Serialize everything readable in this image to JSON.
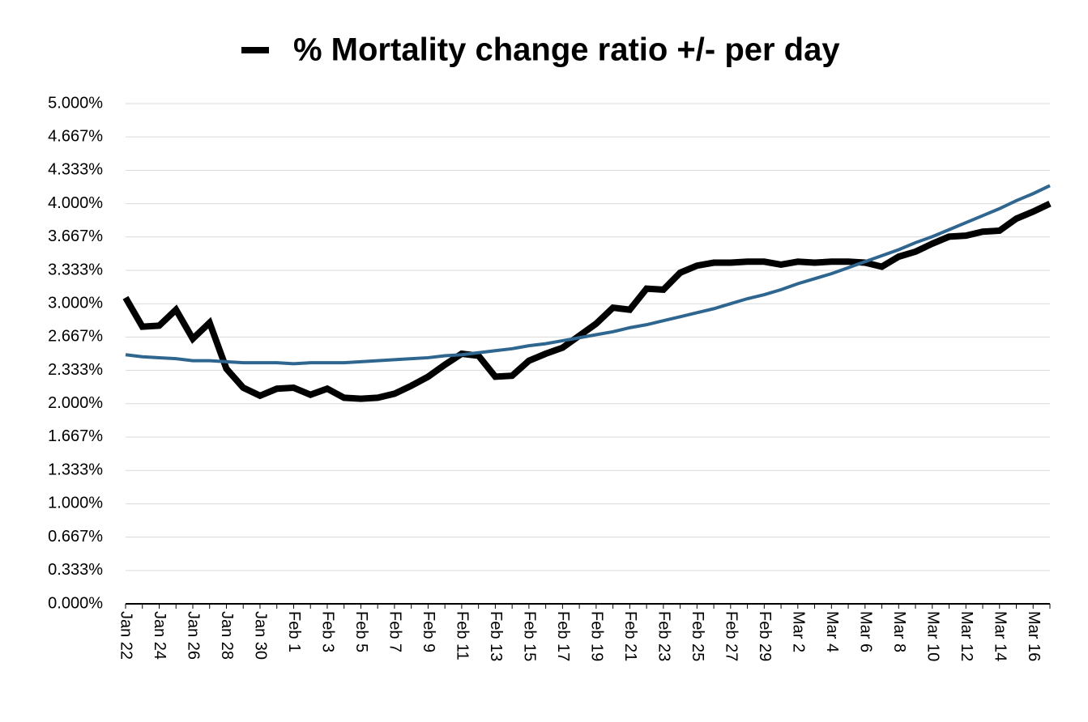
{
  "chart_data": {
    "type": "line",
    "categories": [
      "Jan 22",
      null,
      "Jan 24",
      null,
      "Jan 26",
      null,
      "Jan 28",
      null,
      "Jan 30",
      null,
      "Feb 1",
      null,
      "Feb 3",
      null,
      "Feb 5",
      null,
      "Feb 7",
      null,
      "Feb 9",
      null,
      "Feb 11",
      null,
      "Feb 13",
      null,
      "Feb 15",
      null,
      "Feb 17",
      null,
      "Feb 19",
      null,
      "Feb 21",
      null,
      "Feb 23",
      null,
      "Feb 25",
      null,
      "Feb 27",
      null,
      "Feb 29",
      null,
      "Mar 2",
      null,
      "Mar 4",
      null,
      "Mar 6",
      null,
      "Mar 8",
      null,
      "Mar 10",
      null,
      "Mar 12",
      null,
      "Mar 14",
      null,
      "Mar 16",
      null
    ],
    "series": [
      {
        "name": "% Mortality change ratio +/- per day",
        "color": "#000000",
        "values": [
          3.06,
          2.77,
          2.78,
          2.94,
          2.65,
          2.81,
          2.35,
          2.16,
          2.08,
          2.15,
          2.16,
          2.09,
          2.15,
          2.06,
          2.05,
          2.06,
          2.1,
          2.18,
          2.27,
          2.39,
          2.5,
          2.48,
          2.27,
          2.28,
          2.43,
          2.5,
          2.56,
          2.68,
          2.8,
          2.96,
          2.94,
          3.15,
          3.14,
          3.31,
          3.38,
          3.41,
          3.41,
          3.42,
          3.42,
          3.39,
          3.42,
          3.41,
          3.42,
          3.42,
          3.41,
          3.37,
          3.47,
          3.52,
          3.6,
          3.67,
          3.68,
          3.72,
          3.73,
          3.85,
          3.92,
          4.0
        ]
      },
      {
        "color": "#2f6690",
        "values": [
          2.49,
          2.47,
          2.46,
          2.45,
          2.43,
          2.43,
          2.42,
          2.41,
          2.41,
          2.41,
          2.4,
          2.41,
          2.41,
          2.41,
          2.42,
          2.43,
          2.44,
          2.45,
          2.46,
          2.48,
          2.49,
          2.51,
          2.53,
          2.55,
          2.58,
          2.6,
          2.63,
          2.66,
          2.69,
          2.72,
          2.76,
          2.79,
          2.83,
          2.87,
          2.91,
          2.95,
          3.0,
          3.05,
          3.09,
          3.14,
          3.2,
          3.25,
          3.3,
          3.36,
          3.42,
          3.48,
          3.54,
          3.61,
          3.67,
          3.74,
          3.81,
          3.88,
          3.95,
          4.03,
          4.1,
          4.18
        ]
      }
    ],
    "ylim": [
      0,
      5
    ],
    "yticks": [
      {
        "value": 0,
        "label": "0.000%"
      },
      {
        "value": 0.333,
        "label": "0.333%"
      },
      {
        "value": 0.667,
        "label": "0.667%"
      },
      {
        "value": 1,
        "label": "1.000%"
      },
      {
        "value": 1.333,
        "label": "1.333%"
      },
      {
        "value": 1.667,
        "label": "1.667%"
      },
      {
        "value": 2,
        "label": "2.000%"
      },
      {
        "value": 2.333,
        "label": "2.333%"
      },
      {
        "value": 2.667,
        "label": "2.667%"
      },
      {
        "value": 3,
        "label": "3.000%"
      },
      {
        "value": 3.333,
        "label": "3.333%"
      },
      {
        "value": 3.667,
        "label": "3.667%"
      },
      {
        "value": 4,
        "label": "4.000%"
      },
      {
        "value": 4.333,
        "label": "4.333%"
      },
      {
        "value": 4.667,
        "label": "4.667%"
      },
      {
        "value": 5,
        "label": "5.000%"
      }
    ],
    "grid": true,
    "legend": "top"
  }
}
